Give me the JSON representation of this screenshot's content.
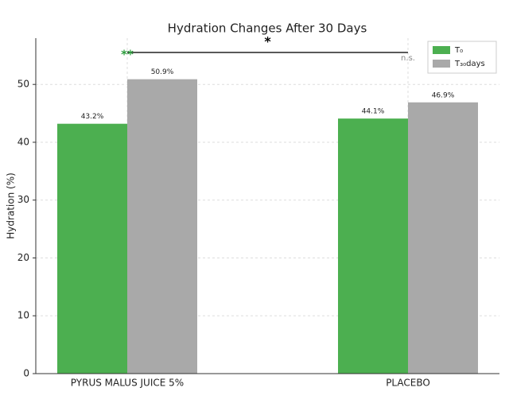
{
  "chart_data": {
    "type": "bar",
    "title": "Hydration Changes After 30 Days",
    "ylabel": "Hydration (%)",
    "categories": [
      "PYRUS MALUS JUICE 5%",
      "PLACEBO"
    ],
    "series": [
      {
        "name": "T₀",
        "color": "#4caf50",
        "values": [
          43.2,
          44.1
        ],
        "value_labels": [
          "43.2%",
          "44.1%"
        ]
      },
      {
        "name": "T₃₀days",
        "color": "#a9a9a9",
        "values": [
          50.9,
          46.9
        ],
        "value_labels": [
          "50.9%",
          "46.9%"
        ]
      }
    ],
    "ylim": [
      0,
      58
    ],
    "yticks": [
      0,
      10,
      20,
      30,
      40,
      50
    ],
    "grid": true,
    "legend": "upper right",
    "annotations": [
      {
        "text": "**",
        "color": "#2e9e3e"
      },
      {
        "text": "*",
        "color": "#000000"
      },
      {
        "text": "n.s.",
        "color": "#888888"
      }
    ]
  }
}
